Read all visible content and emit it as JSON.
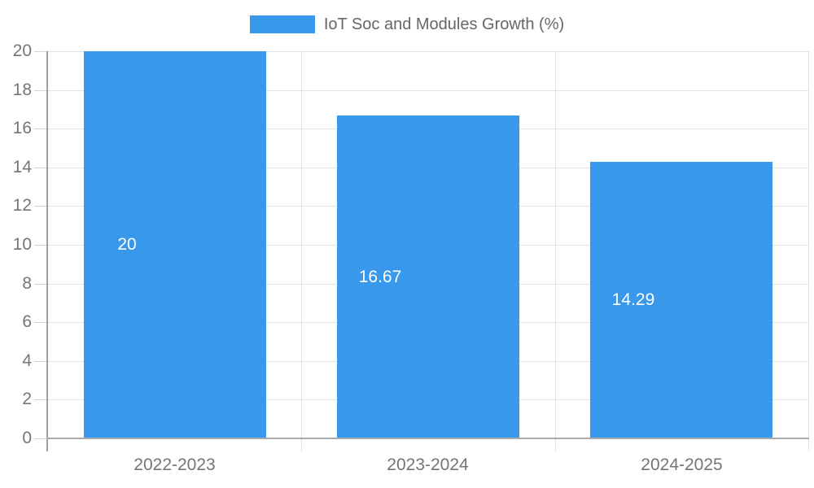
{
  "legend": {
    "label": "IoT Soc and Modules Growth (%)"
  },
  "colors": {
    "bar": "#3898ec",
    "gridline": "#e2e2e2",
    "axis_line": "#9f9f9f",
    "tick_text": "#757575",
    "legend_text": "#666666",
    "bar_label_text": "#ffffff"
  },
  "chart_data": {
    "type": "bar",
    "title": "IoT Soc and Modules Growth (%)",
    "categories": [
      "2022-2023",
      "2023-2024",
      "2024-2025"
    ],
    "values": [
      20,
      16.67,
      14.29
    ],
    "value_labels": [
      "20",
      "16.67",
      "14.29"
    ],
    "xlabel": "",
    "ylabel": "",
    "ylim": [
      0,
      20
    ],
    "yticks": [
      0,
      2,
      4,
      6,
      8,
      10,
      12,
      14,
      16,
      18,
      20
    ],
    "grid": true,
    "legend_position": "top",
    "bar_label_position": "center"
  }
}
